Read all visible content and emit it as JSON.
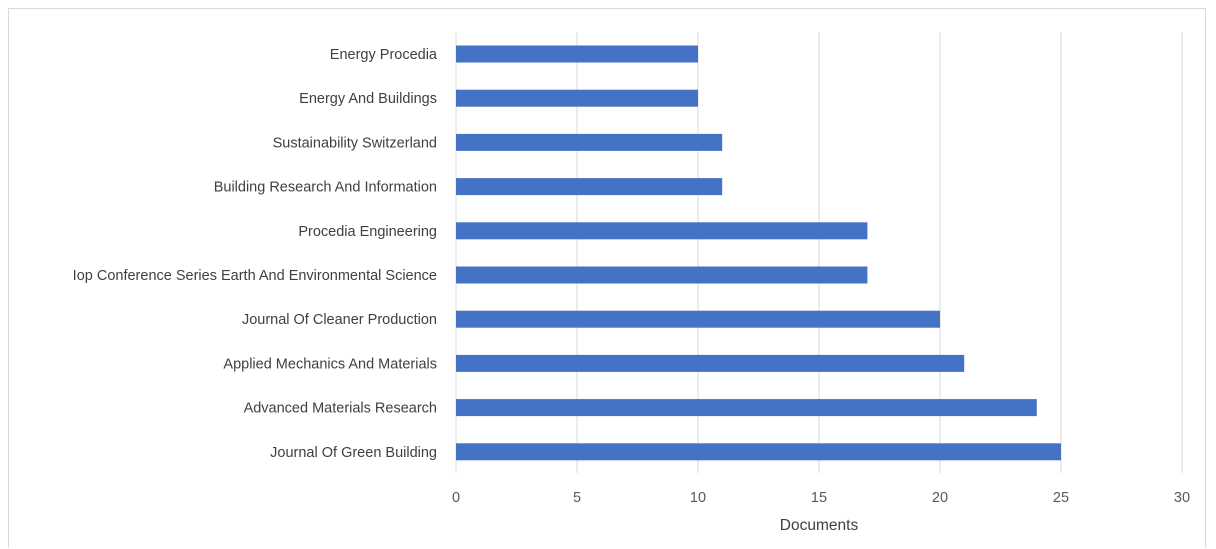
{
  "chart_data": {
    "type": "bar",
    "orientation": "horizontal",
    "title": "",
    "xlabel": "Documents",
    "ylabel": "",
    "xlim": [
      0,
      30
    ],
    "x_ticks": [
      0,
      5,
      10,
      15,
      20,
      25,
      30
    ],
    "grid": "vertical",
    "legend": "none",
    "bar_color": "#4472c4",
    "grid_color": "#d9d9d9",
    "categories": [
      "Energy Procedia",
      "Energy And Buildings",
      "Sustainability Switzerland",
      "Building Research And Information",
      "Procedia Engineering",
      "Iop Conference Series Earth And Environmental Science",
      "Journal Of Cleaner Production",
      "Applied Mechanics And Materials",
      "Advanced Materials Research",
      "Journal Of Green Building"
    ],
    "values": [
      10,
      10,
      11,
      11,
      17,
      17,
      20,
      21,
      24,
      25
    ]
  }
}
